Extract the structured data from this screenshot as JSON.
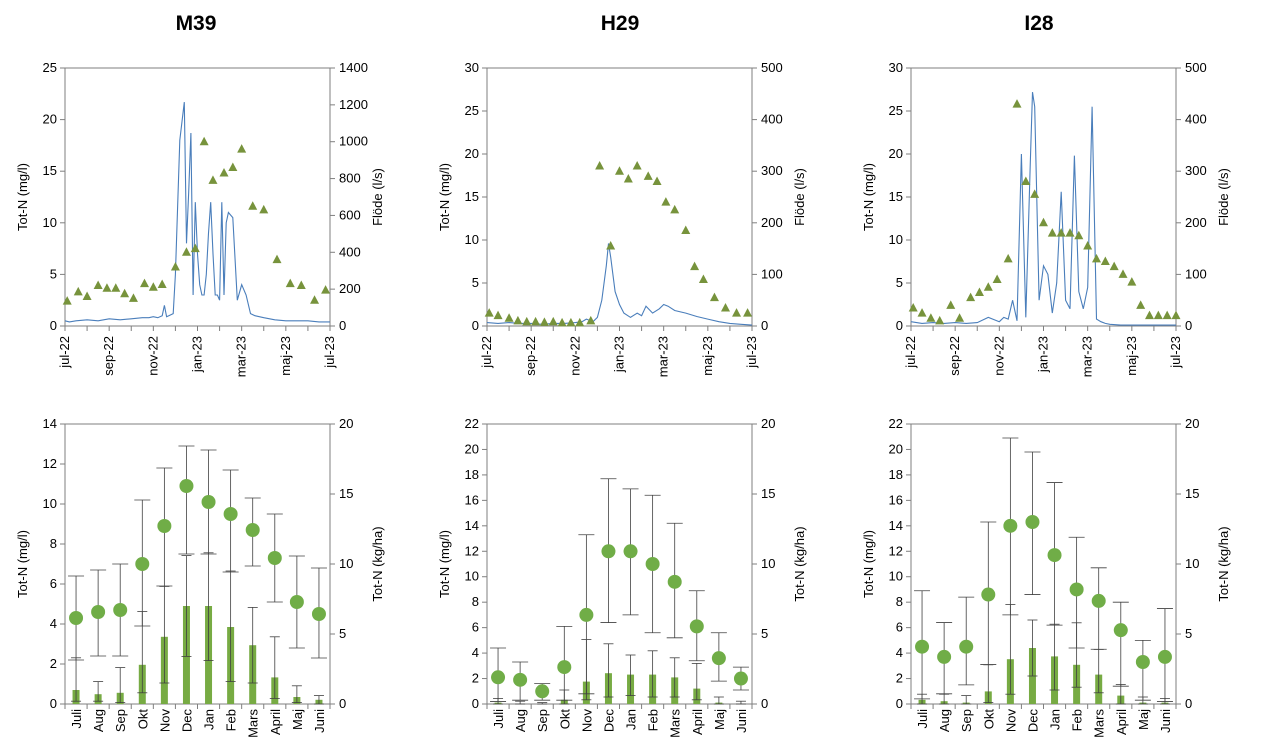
{
  "stations": [
    "M39",
    "H29",
    "I28"
  ],
  "colors": {
    "line": "#4a7ebb",
    "marker": "#77933c",
    "bar": "#77ab43",
    "dot": "#70ad47",
    "errbar": "#404040",
    "axis": "#7f7f7f"
  },
  "chart_data": [
    {
      "type": "line",
      "station": "M39",
      "ylabel": "Tot-N (mg/l)",
      "y2label": "Flöde (l/s)",
      "xticks": [
        "jul-22",
        "sep-22",
        "nov-22",
        "jan-23",
        "mar-23",
        "maj-23",
        "jul-23"
      ],
      "ylim": [
        0,
        25
      ],
      "yticks": [
        0,
        5,
        10,
        15,
        20,
        25
      ],
      "y2lim": [
        0,
        1400
      ],
      "y2ticks": [
        0,
        200,
        400,
        600,
        800,
        1000,
        1200,
        1400
      ],
      "series": [
        {
          "axis": "left",
          "style": "line",
          "x": [
            0,
            0.2,
            0.5,
            1,
            1.5,
            2,
            2.5,
            3,
            3.5,
            3.8,
            4,
            4.2,
            4.4,
            4.5,
            4.6,
            4.7,
            4.9,
            5,
            5.2,
            5.4,
            5.5,
            5.6,
            5.7,
            5.8,
            5.9,
            6,
            6.1,
            6.2,
            6.3,
            6.4,
            6.5,
            6.6,
            6.7,
            6.8,
            6.9,
            7,
            7.1,
            7.2,
            7.3,
            7.4,
            7.6,
            7.8,
            8,
            8.2,
            8.4,
            8.6,
            8.8,
            9,
            9.5,
            10,
            10.5,
            11,
            11.5,
            12
          ],
          "y": [
            0.5,
            0.4,
            0.5,
            0.6,
            0.5,
            0.7,
            0.6,
            0.7,
            0.8,
            0.8,
            0.9,
            0.8,
            1,
            2,
            0.9,
            1,
            1.2,
            5,
            18,
            21.7,
            8,
            13,
            18.7,
            3,
            12,
            7,
            4,
            3,
            3,
            5,
            9,
            12,
            7,
            3,
            3,
            2.5,
            12,
            3,
            10,
            11,
            10.5,
            2.5,
            4,
            3,
            1.2,
            1,
            0.9,
            0.8,
            0.6,
            0.5,
            0.5,
            0.5,
            0.4,
            0.4
          ]
        },
        {
          "axis": "right",
          "style": "triangle",
          "x": [
            0.1,
            0.6,
            1,
            1.5,
            1.9,
            2.3,
            2.7,
            3.1,
            3.6,
            4,
            4.4,
            5,
            5.5,
            5.9,
            6.3,
            6.7,
            7.2,
            7.6,
            8,
            8.5,
            9,
            9.6,
            10.2,
            10.7,
            11.3,
            11.8
          ],
          "y": [
            135,
            185,
            160,
            220,
            205,
            205,
            175,
            150,
            230,
            210,
            225,
            320,
            400,
            420,
            1000,
            790,
            830,
            860,
            960,
            650,
            630,
            360,
            230,
            220,
            140,
            195
          ]
        }
      ]
    },
    {
      "type": "line",
      "station": "H29",
      "ylabel": "Tot-N (mg/l)",
      "y2label": "Flöde (l/s)",
      "xticks": [
        "jul-22",
        "sep-22",
        "nov-22",
        "jan-23",
        "mar-23",
        "maj-23",
        "jul-23"
      ],
      "ylim": [
        0,
        30
      ],
      "yticks": [
        0,
        5,
        10,
        15,
        20,
        25,
        30
      ],
      "y2lim": [
        0,
        500
      ],
      "y2ticks": [
        0,
        100,
        200,
        300,
        400,
        500
      ],
      "series": [
        {
          "axis": "left",
          "style": "line",
          "x": [
            0,
            0.5,
            1,
            1.5,
            2,
            2.5,
            3,
            3.5,
            4,
            4.3,
            4.5,
            4.8,
            5,
            5.2,
            5.4,
            5.5,
            5.6,
            5.7,
            5.8,
            6,
            6.2,
            6.5,
            6.8,
            7,
            7.2,
            7.5,
            7.8,
            8,
            8.2,
            8.5,
            9,
            9.5,
            10,
            10.5,
            11,
            11.5,
            12
          ],
          "y": [
            0.4,
            0.3,
            0.4,
            0.3,
            0.3,
            0.2,
            0.3,
            0.3,
            0.4,
            0.5,
            0.8,
            0.5,
            1,
            3,
            7,
            9.6,
            8,
            6,
            4,
            2.5,
            1.5,
            1,
            1.5,
            1.2,
            2.3,
            1.5,
            2,
            2.5,
            2.3,
            1.8,
            1.5,
            1.1,
            0.8,
            0.5,
            0.3,
            0.2,
            0.1
          ]
        },
        {
          "axis": "right",
          "style": "triangle",
          "x": [
            0.1,
            0.5,
            1,
            1.4,
            1.8,
            2.2,
            2.6,
            3,
            3.4,
            3.8,
            4.2,
            4.7,
            5.1,
            5.6,
            6,
            6.4,
            6.8,
            7.3,
            7.7,
            8.1,
            8.5,
            9,
            9.4,
            9.8,
            10.3,
            10.8,
            11.3,
            11.8
          ],
          "y": [
            25,
            20,
            15,
            10,
            8,
            8,
            7,
            8,
            6,
            6,
            6,
            10,
            310,
            155,
            300,
            285,
            310,
            290,
            280,
            240,
            225,
            185,
            115,
            90,
            55,
            35,
            25,
            25
          ]
        }
      ]
    },
    {
      "type": "line",
      "station": "I28",
      "ylabel": "Tot-N (mg/l)",
      "y2label": "Flöde (l/s)",
      "xticks": [
        "jul-22",
        "sep-22",
        "nov-22",
        "jan-23",
        "mar-23",
        "maj-23",
        "jul-23"
      ],
      "ylim": [
        0,
        30
      ],
      "yticks": [
        0,
        5,
        10,
        15,
        20,
        25,
        30
      ],
      "y2lim": [
        0,
        500
      ],
      "y2ticks": [
        0,
        100,
        200,
        300,
        400,
        500
      ],
      "series": [
        {
          "axis": "left",
          "style": "line",
          "x": [
            0,
            0.5,
            1,
            1.5,
            2,
            2.5,
            3,
            3.5,
            4,
            4.2,
            4.4,
            4.6,
            4.8,
            5,
            5.2,
            5.4,
            5.5,
            5.6,
            5.8,
            6,
            6.2,
            6.4,
            6.6,
            6.8,
            7,
            7.2,
            7.4,
            7.6,
            7.8,
            8,
            8.2,
            8.4,
            8.6,
            8.8,
            9,
            9.5,
            10,
            10.5,
            11,
            11.5,
            12
          ],
          "y": [
            0.5,
            0.3,
            0.4,
            0.3,
            0.4,
            0.3,
            0.4,
            1,
            0.5,
            1,
            0.8,
            3,
            0.6,
            20,
            1,
            19,
            27.2,
            25.5,
            3,
            7,
            6,
            1.5,
            5,
            15.6,
            3,
            2,
            19.8,
            4,
            2,
            4.5,
            25.5,
            0.8,
            0.5,
            0.3,
            0.2,
            0.1,
            0.1,
            0.1,
            0.1,
            0.1,
            0.1
          ]
        },
        {
          "axis": "right",
          "style": "triangle",
          "x": [
            0.1,
            0.5,
            0.9,
            1.3,
            1.8,
            2.2,
            2.7,
            3.1,
            3.5,
            3.9,
            4.4,
            4.8,
            5.2,
            5.6,
            6,
            6.4,
            6.8,
            7.2,
            7.6,
            8,
            8.4,
            8.8,
            9.2,
            9.6,
            10,
            10.4,
            10.8,
            11.2,
            11.6,
            12
          ],
          "y": [
            35,
            25,
            15,
            10,
            40,
            15,
            55,
            65,
            75,
            90,
            130,
            430,
            280,
            255,
            200,
            180,
            180,
            180,
            175,
            155,
            130,
            125,
            115,
            100,
            85,
            40,
            20,
            20,
            20,
            20
          ]
        }
      ]
    },
    {
      "type": "bar",
      "station": "M39",
      "ylabel": "Tot-N (mg/l)",
      "y2label": "Tot-N (kg/ha)",
      "categories": [
        "Juli",
        "Aug",
        "Sep",
        "Okt",
        "Nov",
        "Dec",
        "Jan",
        "Feb",
        "Mars",
        "April",
        "Maj",
        "Juni"
      ],
      "ylim": [
        0,
        14
      ],
      "yticks": [
        0,
        2,
        4,
        6,
        8,
        10,
        12,
        14
      ],
      "y2lim": [
        0,
        20
      ],
      "y2ticks": [
        0,
        5,
        10,
        15,
        20
      ],
      "concentration": {
        "mean": [
          4.3,
          4.6,
          4.7,
          7.0,
          8.9,
          10.9,
          10.1,
          9.5,
          8.7,
          7.3,
          5.1,
          4.5
        ],
        "low": [
          2.2,
          2.4,
          2.4,
          3.9,
          5.9,
          7.5,
          7.5,
          6.6,
          6.9,
          5.1,
          2.8,
          2.3
        ],
        "high": [
          6.4,
          6.7,
          7.0,
          10.2,
          11.8,
          12.9,
          12.7,
          11.7,
          10.3,
          9.5,
          7.4,
          6.8
        ]
      },
      "load": {
        "mean": [
          1.0,
          0.7,
          0.8,
          2.8,
          4.8,
          7.0,
          7.0,
          5.5,
          4.2,
          1.9,
          0.5,
          0.3
        ],
        "low": [
          0.2,
          0.2,
          0.1,
          0.8,
          1.5,
          3.4,
          3.1,
          1.6,
          1.5,
          0.4,
          0.1,
          0.0
        ],
        "high": [
          3.3,
          1.6,
          2.6,
          6.6,
          8.4,
          10.6,
          10.8,
          9.5,
          6.9,
          4.8,
          1.3,
          0.6
        ]
      }
    },
    {
      "type": "bar",
      "station": "H29",
      "ylabel": "Tot-N (mg/l)",
      "y2label": "Tot-N (kg/ha)",
      "categories": [
        "Juli",
        "Aug",
        "Sep",
        "Okt",
        "Nov",
        "Dec",
        "Jan",
        "Feb",
        "Mars",
        "April",
        "Maj",
        "Juni"
      ],
      "ylim": [
        0,
        22
      ],
      "yticks": [
        0,
        2,
        4,
        6,
        8,
        10,
        12,
        14,
        16,
        18,
        20,
        22
      ],
      "y2lim": [
        0,
        20
      ],
      "y2ticks": [
        0,
        5,
        10,
        15,
        20
      ],
      "concentration": {
        "mean": [
          2.1,
          1.9,
          1.0,
          2.9,
          7.0,
          12.0,
          12.0,
          11.0,
          9.6,
          6.1,
          3.6,
          2.0
        ],
        "low": [
          0.2,
          0.3,
          0.3,
          0.3,
          0.8,
          6.4,
          7.0,
          5.6,
          5.2,
          3.4,
          1.8,
          1.1
        ],
        "high": [
          4.4,
          3.3,
          1.6,
          6.1,
          13.3,
          17.7,
          16.9,
          16.4,
          14.2,
          8.9,
          5.6,
          2.9
        ]
      },
      "load": {
        "mean": [
          0.1,
          0.0,
          0.0,
          0.3,
          1.6,
          2.2,
          2.1,
          2.1,
          1.9,
          1.1,
          0.1,
          0.0
        ],
        "low": [
          0.0,
          0.0,
          0.0,
          0.0,
          0.3,
          0.5,
          0.6,
          0.5,
          0.5,
          0.3,
          0.0,
          0.0
        ],
        "high": [
          0.4,
          0.2,
          0.1,
          1.0,
          4.6,
          4.3,
          3.5,
          3.8,
          3.3,
          2.9,
          0.5,
          0.2
        ]
      }
    },
    {
      "type": "bar",
      "station": "I28",
      "ylabel": "Tot-N (mg/l)",
      "y2label": "Tot-N (kg/ha)",
      "categories": [
        "Juli",
        "Aug",
        "Sep",
        "Okt",
        "Nov",
        "Dec",
        "Jan",
        "Feb",
        "Mars",
        "April",
        "Maj",
        "Juni"
      ],
      "ylim": [
        0,
        22
      ],
      "yticks": [
        0,
        2,
        4,
        6,
        8,
        10,
        12,
        14,
        16,
        18,
        20,
        22
      ],
      "y2lim": [
        0,
        20
      ],
      "y2ticks": [
        0,
        5,
        10,
        15,
        20
      ],
      "concentration": {
        "mean": [
          4.5,
          3.7,
          4.5,
          8.6,
          14.0,
          14.3,
          11.7,
          9.0,
          8.1,
          5.8,
          3.3,
          3.7
        ],
        "low": [
          0.4,
          0.8,
          1.5,
          3.1,
          7.0,
          8.6,
          6.2,
          4.4,
          4.3,
          1.4,
          0.3,
          0.2
        ],
        "high": [
          8.9,
          6.4,
          8.4,
          14.3,
          20.9,
          19.8,
          17.4,
          13.1,
          10.7,
          8.0,
          5.0,
          7.5
        ]
      },
      "load": {
        "mean": [
          0.3,
          0.2,
          0.1,
          0.9,
          3.2,
          4.0,
          3.4,
          2.8,
          2.1,
          0.6,
          0.1,
          0.1
        ],
        "low": [
          0.0,
          0.0,
          0.0,
          0.1,
          0.7,
          2.0,
          1.0,
          1.2,
          0.8,
          0.0,
          0.0,
          0.0
        ],
        "high": [
          0.7,
          0.7,
          0.6,
          2.8,
          7.1,
          6.0,
          5.7,
          5.8,
          3.9,
          1.4,
          0.5,
          0.4
        ]
      }
    }
  ]
}
